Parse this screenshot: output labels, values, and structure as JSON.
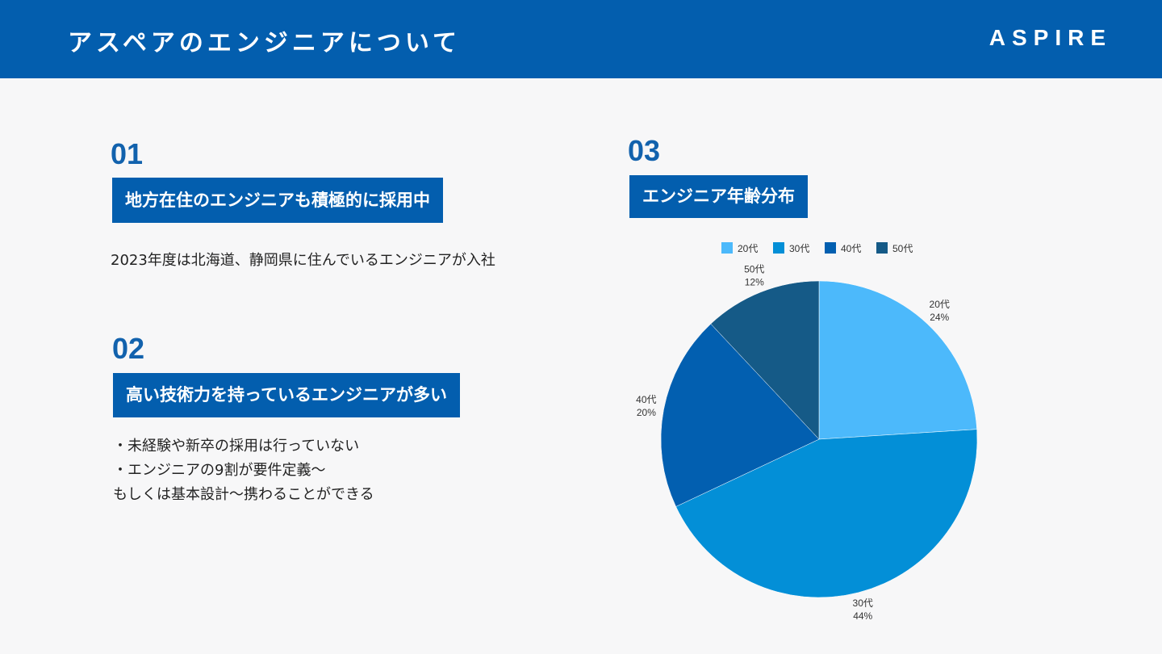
{
  "header": {
    "title": "アスペアのエンジニアについて",
    "logo": "ASPIRE"
  },
  "sections": [
    {
      "num": "01",
      "heading": "地方在住のエンジニアも積極的に採用中",
      "text": "2023年度は北海道、静岡県に住んでいるエンジニアが入社"
    },
    {
      "num": "02",
      "heading": "高い技術力を持っているエンジニアが多い",
      "lines": [
        "・未経験や新卒の採用は行っていない",
        "・エンジニアの9割が要件定義～",
        "もしくは基本設計～携わることができる"
      ]
    },
    {
      "num": "03",
      "heading": "エンジニア年齢分布"
    }
  ],
  "chart_data": {
    "type": "pie",
    "categories": [
      "20代",
      "30代",
      "40代",
      "50代"
    ],
    "values": [
      24,
      44,
      20,
      12
    ],
    "labels": [
      "24%",
      "44%",
      "20%",
      "12%"
    ],
    "colors": [
      "#4cb9fb",
      "#038fd7",
      "#025fb0",
      "#155a87"
    ],
    "legend": "top"
  }
}
